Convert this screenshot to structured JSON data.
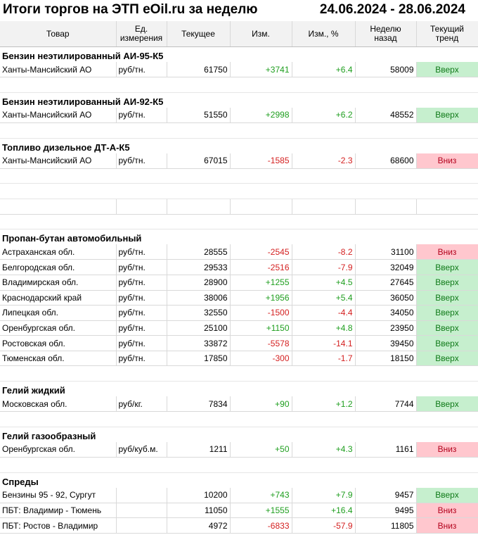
{
  "title": "Итоги торгов на ЭТП eOil.ru за неделю",
  "period": "24.06.2024 - 28.06.2024",
  "headers": {
    "product": "Товар",
    "unit_line1": "Ед.",
    "unit_line2": "измерения",
    "current": "Текущее",
    "change": "Изм.",
    "change_pct": "Изм., %",
    "week_ago_line1": "Неделю",
    "week_ago_line2": "назад",
    "trend_line1": "Текущий",
    "trend_line2": "тренд"
  },
  "sections": {
    "ai95": {
      "title": "Бензин неэтилированный АИ-95-К5",
      "rows": [
        {
          "name": "Ханты-Мансийский АО",
          "unit": "руб/тн.",
          "current": "61750",
          "change": "+3741",
          "change_pct": "+6.4",
          "week_ago": "58009",
          "trend": "Вверх"
        }
      ]
    },
    "ai92": {
      "title": "Бензин неэтилированный АИ-92-К5",
      "rows": [
        {
          "name": "Ханты-Мансийский АО",
          "unit": "руб/тн.",
          "current": "51550",
          "change": "+2998",
          "change_pct": "+6.2",
          "week_ago": "48552",
          "trend": "Вверх"
        }
      ]
    },
    "diesel": {
      "title": "Топливо дизельное ДТ-А-К5",
      "rows": [
        {
          "name": "Ханты-Мансийский АО",
          "unit": "руб/тн.",
          "current": "67015",
          "change": "-1585",
          "change_pct": "-2.3",
          "week_ago": "68600",
          "trend": "Вниз"
        }
      ]
    },
    "propane": {
      "title": "Пропан-бутан автомобильный",
      "rows": [
        {
          "name": "Астраханская обл.",
          "unit": "руб/тн.",
          "current": "28555",
          "change": "-2545",
          "change_pct": "-8.2",
          "week_ago": "31100",
          "trend": "Вниз"
        },
        {
          "name": "Белгородская обл.",
          "unit": "руб/тн.",
          "current": "29533",
          "change": "-2516",
          "change_pct": "-7.9",
          "week_ago": "32049",
          "trend": "Вверх"
        },
        {
          "name": "Владимирская обл.",
          "unit": "руб/тн.",
          "current": "28900",
          "change": "+1255",
          "change_pct": "+4.5",
          "week_ago": "27645",
          "trend": "Вверх"
        },
        {
          "name": "Краснодарский край",
          "unit": "руб/тн.",
          "current": "38006",
          "change": "+1956",
          "change_pct": "+5.4",
          "week_ago": "36050",
          "trend": "Вверх"
        },
        {
          "name": "Липецкая обл.",
          "unit": "руб/тн.",
          "current": "32550",
          "change": "-1500",
          "change_pct": "-4.4",
          "week_ago": "34050",
          "trend": "Вверх"
        },
        {
          "name": "Оренбургская обл.",
          "unit": "руб/тн.",
          "current": "25100",
          "change": "+1150",
          "change_pct": "+4.8",
          "week_ago": "23950",
          "trend": "Вверх"
        },
        {
          "name": "Ростовская обл.",
          "unit": "руб/тн.",
          "current": "33872",
          "change": "-5578",
          "change_pct": "-14.1",
          "week_ago": "39450",
          "trend": "Вверх"
        },
        {
          "name": "Тюменская обл.",
          "unit": "руб/тн.",
          "current": "17850",
          "change": "-300",
          "change_pct": "-1.7",
          "week_ago": "18150",
          "trend": "Вверх"
        }
      ]
    },
    "helium_liquid": {
      "title": "Гелий жидкий",
      "rows": [
        {
          "name": "Московская обл.",
          "unit": "руб/кг.",
          "current": "7834",
          "change": "+90",
          "change_pct": "+1.2",
          "week_ago": "7744",
          "trend": "Вверх"
        }
      ]
    },
    "helium_gas": {
      "title": "Гелий газообразный",
      "rows": [
        {
          "name": "Оренбургская обл.",
          "unit": "руб/куб.м.",
          "current": "1211",
          "change": "+50",
          "change_pct": "+4.3",
          "week_ago": "1161",
          "trend": "Вниз"
        }
      ]
    },
    "spreads": {
      "title": "Спреды",
      "rows": [
        {
          "name": "Бензины 95 - 92, Сургут",
          "unit": "",
          "current": "10200",
          "change": "+743",
          "change_pct": "+7.9",
          "week_ago": "9457",
          "trend": "Вверх"
        },
        {
          "name": "ПБТ: Владимир - Тюмень",
          "unit": "",
          "current": "11050",
          "change": "+1555",
          "change_pct": "+16.4",
          "week_ago": "9495",
          "trend": "Вниз"
        },
        {
          "name": "ПБТ: Ростов - Владимир",
          "unit": "",
          "current": "4972",
          "change": "-6833",
          "change_pct": "-57.9",
          "week_ago": "11805",
          "trend": "Вниз"
        }
      ]
    }
  },
  "colors": {
    "trend_up_bg": "#c6efce",
    "trend_down_bg": "#ffc7ce",
    "positive_text": "#1e9e1e",
    "negative_text": "#d42020"
  }
}
